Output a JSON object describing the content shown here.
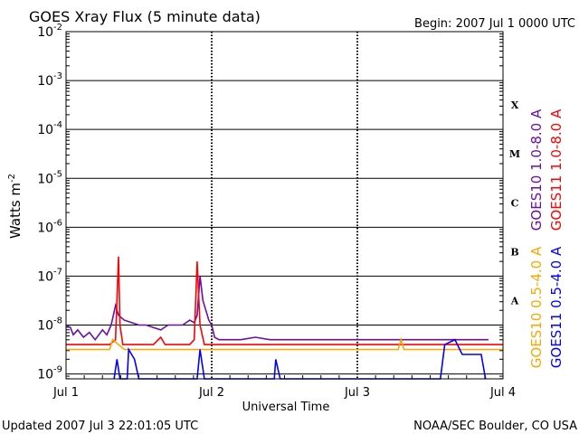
{
  "chart_data": {
    "type": "line",
    "title": "GOES Xray Flux (5 minute data)",
    "begin_label": "Begin:  2007 Jul 1 0000 UTC",
    "ylabel": "Watts m",
    "ylabel_sup": "-2",
    "xlabel": "Universal Time",
    "updated": "Updated 2007 Jul  3 22:01:05 UTC",
    "credit": "NOAA/SEC Boulder, CO USA",
    "x_ticks": [
      "Jul 1",
      "Jul 2",
      "Jul 3",
      "Jul 4"
    ],
    "xlim_days": [
      0,
      3
    ],
    "ylim_log10": [
      -9.1,
      -2
    ],
    "y_ticks": [
      {
        "exp": -2,
        "base": "10",
        "sup": "-2"
      },
      {
        "exp": -3,
        "base": "10",
        "sup": "-3"
      },
      {
        "exp": -4,
        "base": "10",
        "sup": "-4"
      },
      {
        "exp": -5,
        "base": "10",
        "sup": "-5"
      },
      {
        "exp": -6,
        "base": "10",
        "sup": "-6"
      },
      {
        "exp": -7,
        "base": "10",
        "sup": "-7"
      },
      {
        "exp": -8,
        "base": "10",
        "sup": "-8"
      },
      {
        "exp": -9,
        "base": "10",
        "sup": "-9"
      }
    ],
    "flare_classes": [
      {
        "label": "X",
        "exp": -3.5
      },
      {
        "label": "M",
        "exp": -4.5
      },
      {
        "label": "C",
        "exp": -5.5
      },
      {
        "label": "B",
        "exp": -6.5
      },
      {
        "label": "A",
        "exp": -7.5
      }
    ],
    "series": [
      {
        "name": "GOES10 1.0-8.0 A",
        "color": "#6a0dad",
        "points": [
          [
            0,
            -8.0
          ],
          [
            0.03,
            -8.05
          ],
          [
            0.05,
            -8.2
          ],
          [
            0.08,
            -8.1
          ],
          [
            0.12,
            -8.25
          ],
          [
            0.16,
            -8.15
          ],
          [
            0.2,
            -8.3
          ],
          [
            0.25,
            -8.1
          ],
          [
            0.28,
            -8.2
          ],
          [
            0.31,
            -8.0
          ],
          [
            0.34,
            -7.6
          ],
          [
            0.36,
            -7.8
          ],
          [
            0.4,
            -7.9
          ],
          [
            0.45,
            -7.95
          ],
          [
            0.5,
            -8.0
          ],
          [
            0.55,
            -8.0
          ],
          [
            0.6,
            -8.05
          ],
          [
            0.65,
            -8.1
          ],
          [
            0.7,
            -8.0
          ],
          [
            0.75,
            -8.0
          ],
          [
            0.8,
            -8.0
          ],
          [
            0.85,
            -7.9
          ],
          [
            0.88,
            -7.95
          ],
          [
            0.9,
            -7.8
          ],
          [
            0.92,
            -7.0
          ],
          [
            0.94,
            -7.5
          ],
          [
            0.96,
            -7.7
          ],
          [
            0.98,
            -7.9
          ],
          [
            1.0,
            -8.0
          ],
          [
            1.02,
            -8.25
          ],
          [
            1.05,
            -8.3
          ],
          [
            1.1,
            -8.3
          ],
          [
            1.2,
            -8.3
          ],
          [
            1.3,
            -8.25
          ],
          [
            1.4,
            -8.3
          ],
          [
            1.5,
            -8.3
          ],
          [
            1.6,
            -8.3
          ],
          [
            1.7,
            -8.3
          ],
          [
            1.8,
            -8.3
          ],
          [
            1.9,
            -8.3
          ],
          [
            2.0,
            -8.3
          ],
          [
            2.2,
            -8.3
          ],
          [
            2.4,
            -8.3
          ],
          [
            2.6,
            -8.3
          ],
          [
            2.8,
            -8.3
          ],
          [
            2.9,
            -8.3
          ]
        ]
      },
      {
        "name": "GOES11 1.0-8.0 A",
        "color": "#ff0000",
        "points": [
          [
            0,
            -8.4
          ],
          [
            0.3,
            -8.4
          ],
          [
            0.34,
            -8.3
          ],
          [
            0.36,
            -6.6
          ],
          [
            0.37,
            -8.0
          ],
          [
            0.39,
            -8.4
          ],
          [
            0.6,
            -8.4
          ],
          [
            0.65,
            -8.25
          ],
          [
            0.68,
            -8.4
          ],
          [
            0.85,
            -8.4
          ],
          [
            0.88,
            -8.3
          ],
          [
            0.9,
            -6.7
          ],
          [
            0.92,
            -8.0
          ],
          [
            0.95,
            -8.4
          ],
          [
            3.0,
            -8.4
          ]
        ]
      },
      {
        "name": "GOES10 0.5-4.0 A",
        "color": "#ffa500",
        "points": [
          [
            0,
            -8.5
          ],
          [
            0.3,
            -8.5
          ],
          [
            0.32,
            -8.3
          ],
          [
            0.36,
            -8.4
          ],
          [
            0.4,
            -8.5
          ],
          [
            2.28,
            -8.5
          ],
          [
            2.3,
            -8.3
          ],
          [
            2.32,
            -8.5
          ],
          [
            3.0,
            -8.5
          ]
        ]
      },
      {
        "name": "GOES11 0.5-4.0 A",
        "color": "#0000ff",
        "points": [
          [
            0.33,
            -9.1
          ],
          [
            0.35,
            -8.7
          ],
          [
            0.37,
            -9.1
          ],
          [
            0.42,
            -9.1
          ],
          [
            0.43,
            -8.5
          ],
          [
            0.47,
            -8.7
          ],
          [
            0.5,
            -9.1
          ],
          [
            0.9,
            -9.1
          ],
          [
            0.92,
            -8.5
          ],
          [
            0.95,
            -9.1
          ],
          [
            1.43,
            -9.1
          ],
          [
            1.44,
            -8.7
          ],
          [
            1.47,
            -9.1
          ],
          [
            2.57,
            -9.1
          ],
          [
            2.6,
            -8.4
          ],
          [
            2.67,
            -8.3
          ],
          [
            2.72,
            -8.6
          ],
          [
            2.85,
            -8.6
          ],
          [
            2.88,
            -9.1
          ]
        ]
      }
    ]
  }
}
